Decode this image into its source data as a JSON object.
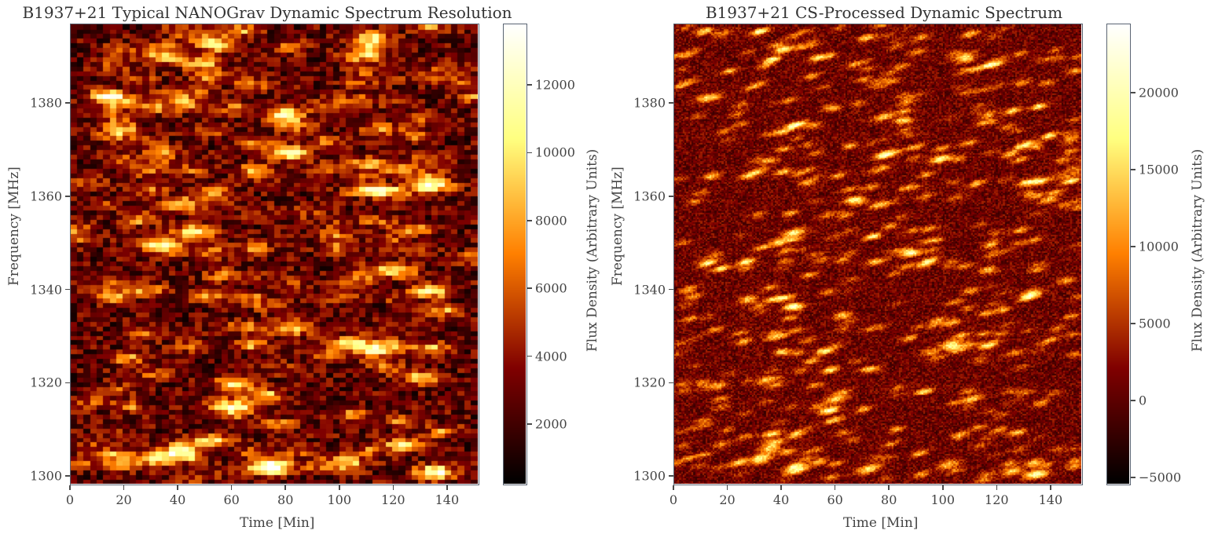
{
  "chart_data": [
    {
      "type": "heatmap",
      "title": "B1937+21 Typical NANOGrav Dynamic Spectrum Resolution",
      "xlabel": "Time [Min]",
      "ylabel": "Frequency [MHz]",
      "xlim": [
        0,
        152
      ],
      "ylim": [
        1298,
        1397
      ],
      "x_ticks": [
        0,
        20,
        40,
        60,
        80,
        100,
        120,
        140
      ],
      "y_ticks": [
        1300,
        1320,
        1340,
        1360,
        1380
      ],
      "colormap": "afmhot",
      "colorbar": {
        "label": "Flux Density (Arbitrary Units)",
        "range": [
          200,
          13800
        ],
        "ticks": [
          2000,
          4000,
          6000,
          8000,
          10000,
          12000
        ]
      },
      "grid": false,
      "resolution": "coarse",
      "bright_features": [
        {
          "time": 12,
          "freq": 1381,
          "flux": 9500
        },
        {
          "time": 45,
          "freq": 1352,
          "flux": 10500
        },
        {
          "time": 48,
          "freq": 1388,
          "flux": 9000
        },
        {
          "time": 78,
          "freq": 1377,
          "flux": 9500
        },
        {
          "time": 80,
          "freq": 1369,
          "flux": 13500
        },
        {
          "time": 108,
          "freq": 1390,
          "flux": 10000
        },
        {
          "time": 133,
          "freq": 1363,
          "flux": 10000
        },
        {
          "time": 14,
          "freq": 1338,
          "flux": 9500
        },
        {
          "time": 133,
          "freq": 1339,
          "flux": 11000
        },
        {
          "time": 103,
          "freq": 1328,
          "flux": 10500
        },
        {
          "time": 112,
          "freq": 1326,
          "flux": 9000
        },
        {
          "time": 60,
          "freq": 1319,
          "flux": 10500
        },
        {
          "time": 60,
          "freq": 1314,
          "flux": 11000
        },
        {
          "time": 52,
          "freq": 1307,
          "flux": 10000
        },
        {
          "time": 32,
          "freq": 1303,
          "flux": 11000
        },
        {
          "time": 72,
          "freq": 1301,
          "flux": 12000
        },
        {
          "time": 102,
          "freq": 1302,
          "flux": 10000
        },
        {
          "time": 135,
          "freq": 1300,
          "flux": 11000
        },
        {
          "time": 123,
          "freq": 1306,
          "flux": 9500
        }
      ]
    },
    {
      "type": "heatmap",
      "title": "B1937+21 CS-Processed Dynamic Spectrum",
      "xlabel": "Time [Min]",
      "ylabel": "Frequency [MHz]",
      "xlim": [
        0,
        152
      ],
      "ylim": [
        1298,
        1397
      ],
      "x_ticks": [
        0,
        20,
        40,
        60,
        80,
        100,
        120,
        140
      ],
      "y_ticks": [
        1300,
        1320,
        1340,
        1360,
        1380
      ],
      "colormap": "afmhot",
      "colorbar": {
        "label": "Flux Density (Arbitrary Units)",
        "range": [
          -5500,
          24500
        ],
        "ticks": [
          -5000,
          0,
          5000,
          10000,
          15000,
          20000
        ]
      },
      "grid": false,
      "resolution": "fine",
      "bright_features": [
        {
          "time": 12,
          "freq": 1381,
          "flux": 12000
        },
        {
          "time": 45,
          "freq": 1352,
          "flux": 13000
        },
        {
          "time": 78,
          "freq": 1377,
          "flux": 12000
        },
        {
          "time": 80,
          "freq": 1369,
          "flux": 16000
        },
        {
          "time": 108,
          "freq": 1390,
          "flux": 12000
        },
        {
          "time": 133,
          "freq": 1363,
          "flux": 12000
        },
        {
          "time": 133,
          "freq": 1339,
          "flux": 13000
        },
        {
          "time": 103,
          "freq": 1328,
          "flux": 13000
        },
        {
          "time": 60,
          "freq": 1316,
          "flux": 13000
        },
        {
          "time": 32,
          "freq": 1303,
          "flux": 13000
        },
        {
          "time": 72,
          "freq": 1301,
          "flux": 14000
        },
        {
          "time": 102,
          "freq": 1302,
          "flux": 12000
        },
        {
          "time": 135,
          "freq": 1300,
          "flux": 13000
        }
      ]
    }
  ]
}
